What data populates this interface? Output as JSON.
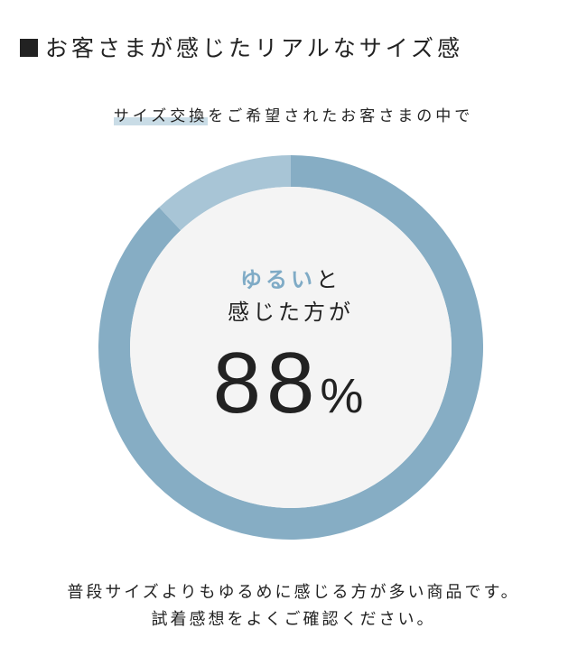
{
  "title": "お客さまが感じたリアルなサイズ感",
  "subtitle": {
    "highlight": "サイズ交換",
    "rest": "をご希望されたお客さまの中で"
  },
  "center": {
    "accent": "ゆるい",
    "line1_rest": "と",
    "line2": "感じた方が",
    "value": "88",
    "unit": "%"
  },
  "footer": [
    "普段サイズよりもゆるめに感じる方が多い商品です。",
    "試着感想をよくご確認ください。"
  ],
  "chart_data": {
    "type": "pie",
    "donut": true,
    "values": [
      88,
      12
    ],
    "colors": [
      "#86adc4",
      "#a8c5d6"
    ],
    "center_fill": "#f4f4f4",
    "start": "top",
    "direction": "clockwise"
  }
}
